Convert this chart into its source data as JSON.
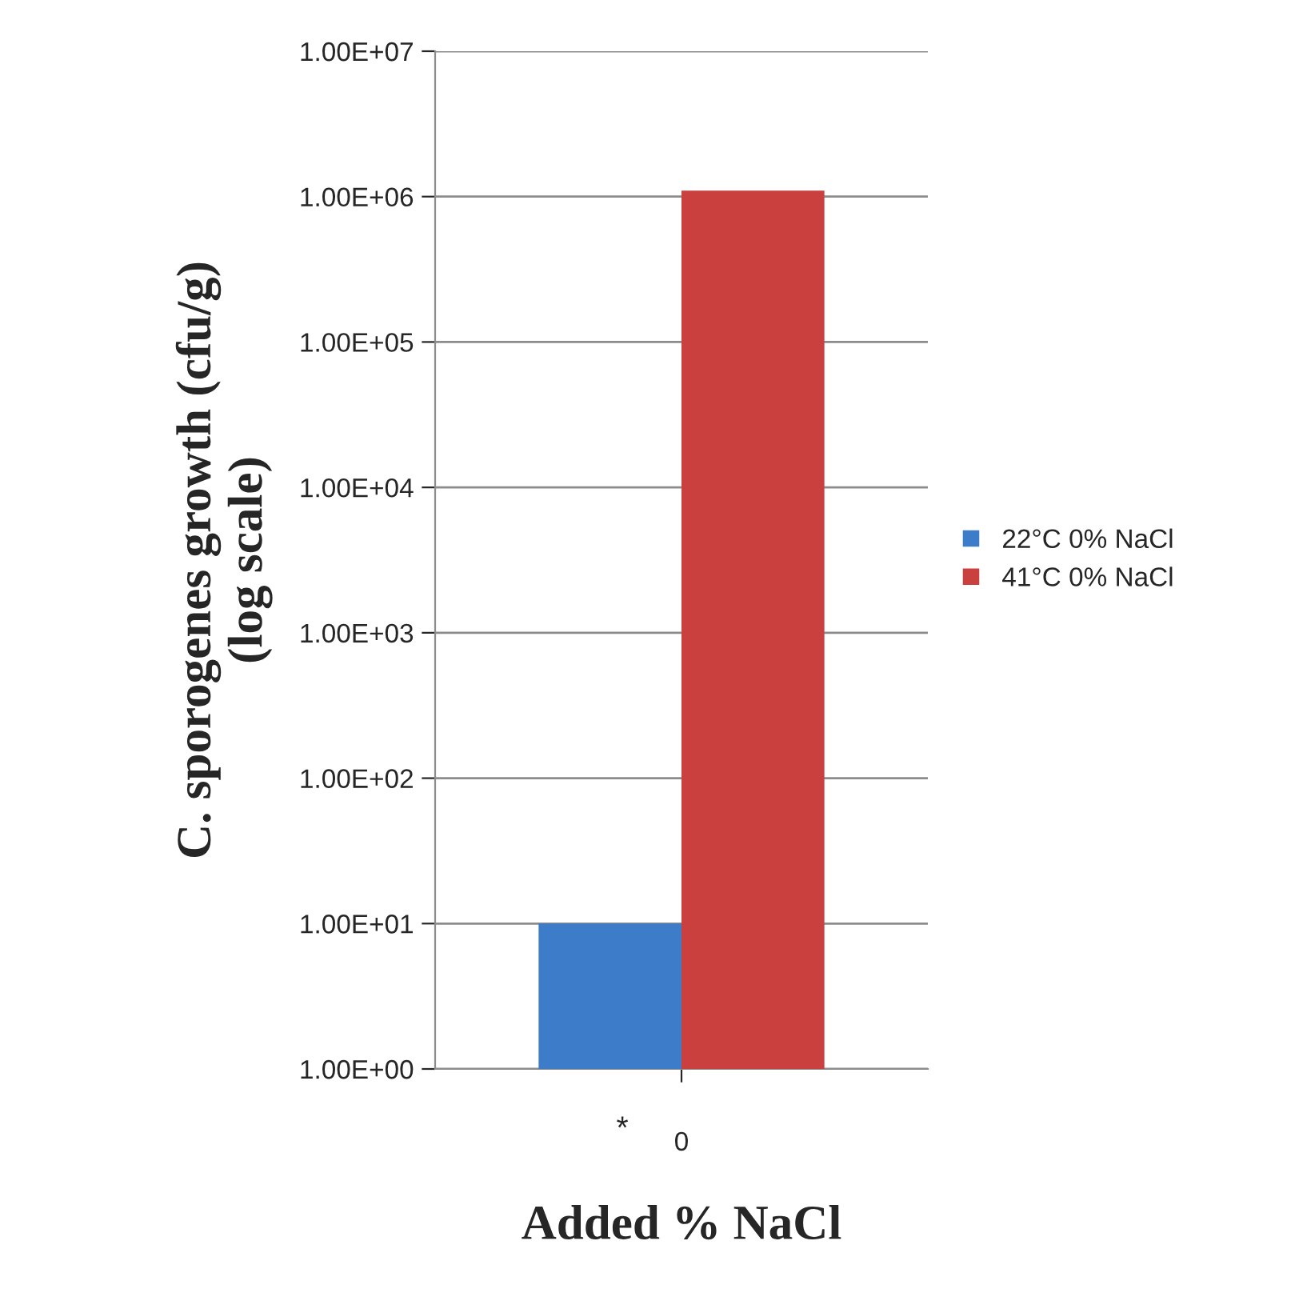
{
  "chart_data": {
    "type": "bar",
    "categories": [
      "0"
    ],
    "series": [
      {
        "name": "22°C 0% NaCl",
        "color": "#3d7cc9",
        "values": [
          10
        ]
      },
      {
        "name": "41°C 0% NaCl",
        "color": "#c9403e",
        "values": [
          1100000
        ]
      }
    ],
    "xlabel": "Added % NaCl",
    "ylabel": "C. sporogenes growth (cfu/g)\n(log scale)",
    "log": true,
    "ylim": [
      1,
      10000000
    ],
    "yticks": [
      {
        "value": 1,
        "label": "1.00E+00"
      },
      {
        "value": 10,
        "label": "1.00E+01"
      },
      {
        "value": 100,
        "label": "1.00E+02"
      },
      {
        "value": 1000,
        "label": "1.00E+03"
      },
      {
        "value": 10000,
        "label": "1.00E+04"
      },
      {
        "value": 100000,
        "label": "1.00E+05"
      },
      {
        "value": 1000000,
        "label": "1.00E+06"
      },
      {
        "value": 10000000,
        "label": "1.00E+07"
      }
    ],
    "grid": "y",
    "legend": "right",
    "annotations": [
      "*"
    ]
  }
}
